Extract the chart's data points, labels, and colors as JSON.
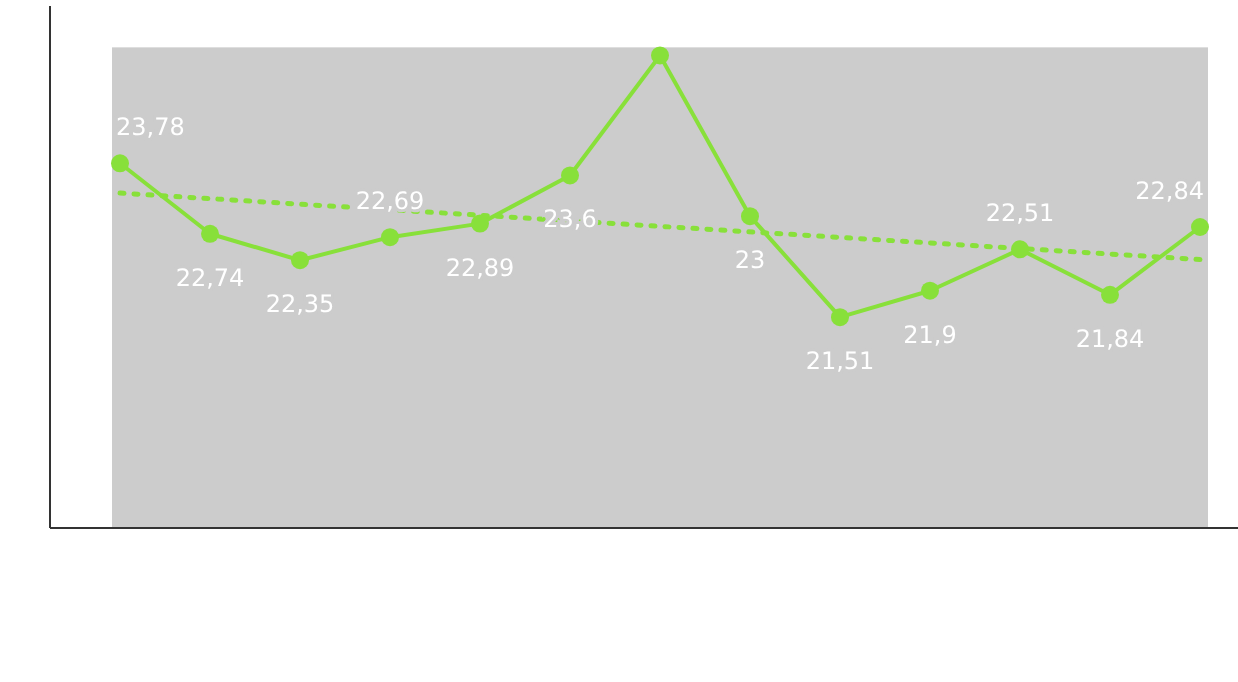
{
  "chart_data": {
    "type": "line",
    "categories": [
      null,
      null,
      null,
      null,
      null,
      null,
      null,
      null,
      null,
      null,
      null,
      null,
      null
    ],
    "series": [
      {
        "color": "#88e03a",
        "values": [
          23.78,
          22.74,
          22.35,
          22.69,
          22.89,
          23.6,
          25.37,
          23,
          21.51,
          21.9,
          22.51,
          21.84,
          22.84
        ],
        "value_labels": [
          "23,78",
          "22,74",
          "22,35",
          "22,69",
          "22,89",
          "23,6",
          null,
          "23",
          "21,51",
          "21,9",
          "22,51",
          "21,84",
          "22,84"
        ],
        "marker": "circle",
        "line_style": "solid"
      },
      {
        "type": "line",
        "color": "#88e03a",
        "values": [
          23.34,
          null,
          null,
          null,
          null,
          null,
          null,
          null,
          null,
          null,
          null,
          null,
          22.36
        ],
        "marker": "none",
        "line_style": "dotted"
      }
    ],
    "ylim": [
      18.4,
      26.1
    ]
  }
}
